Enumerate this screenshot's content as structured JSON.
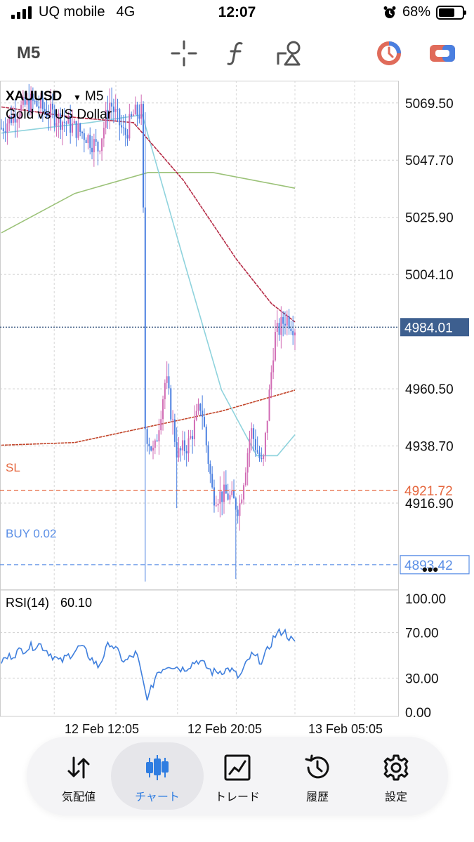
{
  "status_bar": {
    "carrier": "UQ mobile",
    "network": "4G",
    "time": "12:07",
    "battery": "68%",
    "battery_level": 0.68
  },
  "toolbar": {
    "timeframe": "M5",
    "icons": [
      "crosshair-icon",
      "function-icon",
      "objects-icon",
      "chart-type-icon",
      "trade-toggle-icon"
    ]
  },
  "chart": {
    "symbol": "XAUUSD",
    "timeframe": "M5",
    "description": "Gold vs US Dollar",
    "current_price": "4984.01",
    "price_ticks": [
      "5069.50",
      "5047.70",
      "5025.90",
      "5004.10",
      "4960.50",
      "4938.70",
      "4916.90"
    ],
    "sl_label": "SL",
    "sl_price": "4921.72",
    "buy_label": "BUY 0.02",
    "buy_price": "4893.42",
    "more_label": "•••",
    "time_ticks": [
      "12 Feb 12:05",
      "12 Feb 20:05",
      "13 Feb 05:05"
    ],
    "colors": {
      "bull": "#d16bb4",
      "bear": "#4a7fe0",
      "ma_fast": "#8fd3dd",
      "ma_mid": "#b52a45",
      "ma_slow": "#9bc278",
      "ma_long": "#c2452a",
      "sl_line": "#e5663d",
      "buy_line": "#5b8fe6",
      "rsi_line": "#3f7fdd"
    }
  },
  "rsi": {
    "label": "RSI(14)",
    "value": "60.10",
    "levels": [
      "100.00",
      "70.00",
      "30.00",
      "0.00"
    ]
  },
  "bottom_nav": [
    {
      "label": "気配値",
      "icon": "quotes-icon"
    },
    {
      "label": "チャート",
      "icon": "chart-icon",
      "active": true
    },
    {
      "label": "トレード",
      "icon": "trade-icon"
    },
    {
      "label": "履歴",
      "icon": "history-icon"
    },
    {
      "label": "設定",
      "icon": "settings-icon"
    }
  ],
  "chart_data": {
    "type": "candlestick",
    "symbol": "XAUUSD",
    "timeframe": "M5",
    "ylim": [
      4884,
      5078
    ],
    "x_tick_labels": [
      "12 Feb 12:05",
      "12 Feb 20:05",
      "13 Feb 05:05"
    ],
    "segments": [
      {
        "t": 0.0,
        "price": 5060
      },
      {
        "t": 0.05,
        "price": 5066
      },
      {
        "t": 0.1,
        "price": 5070
      },
      {
        "t": 0.16,
        "price": 5066
      },
      {
        "t": 0.22,
        "price": 5062
      },
      {
        "t": 0.29,
        "price": 5057
      },
      {
        "t": 0.33,
        "price": 5052
      },
      {
        "t": 0.37,
        "price": 5070
      },
      {
        "t": 0.42,
        "price": 5057
      },
      {
        "t": 0.45,
        "price": 5065
      },
      {
        "t": 0.48,
        "price": 5066
      },
      {
        "t": 0.49,
        "price": 4945
      },
      {
        "t": 0.52,
        "price": 4935
      },
      {
        "t": 0.56,
        "price": 4965
      },
      {
        "t": 0.6,
        "price": 4935
      },
      {
        "t": 0.64,
        "price": 4940
      },
      {
        "t": 0.68,
        "price": 4955
      },
      {
        "t": 0.72,
        "price": 4920
      },
      {
        "t": 0.77,
        "price": 4920
      },
      {
        "t": 0.81,
        "price": 4915
      },
      {
        "t": 0.85,
        "price": 4945
      },
      {
        "t": 0.89,
        "price": 4930
      },
      {
        "t": 0.93,
        "price": 4980
      },
      {
        "t": 0.97,
        "price": 4988
      },
      {
        "t": 1.0,
        "price": 4984
      }
    ],
    "rsi_segments": [
      {
        "t": 0.0,
        "v": 45
      },
      {
        "t": 0.07,
        "v": 55
      },
      {
        "t": 0.13,
        "v": 60
      },
      {
        "t": 0.2,
        "v": 44
      },
      {
        "t": 0.27,
        "v": 58
      },
      {
        "t": 0.33,
        "v": 40
      },
      {
        "t": 0.37,
        "v": 62
      },
      {
        "t": 0.42,
        "v": 44
      },
      {
        "t": 0.46,
        "v": 52
      },
      {
        "t": 0.49,
        "v": 18
      },
      {
        "t": 0.5,
        "v": 12
      },
      {
        "t": 0.53,
        "v": 35
      },
      {
        "t": 0.57,
        "v": 42
      },
      {
        "t": 0.62,
        "v": 38
      },
      {
        "t": 0.67,
        "v": 46
      },
      {
        "t": 0.72,
        "v": 35
      },
      {
        "t": 0.78,
        "v": 38
      },
      {
        "t": 0.81,
        "v": 30
      },
      {
        "t": 0.85,
        "v": 50
      },
      {
        "t": 0.89,
        "v": 45
      },
      {
        "t": 0.93,
        "v": 67
      },
      {
        "t": 0.96,
        "v": 72
      },
      {
        "t": 1.0,
        "v": 60
      }
    ],
    "ma_fast": [
      [
        0.0,
        5058
      ],
      [
        0.3,
        5062
      ],
      [
        0.48,
        5065
      ],
      [
        0.62,
        5010
      ],
      [
        0.75,
        4960
      ],
      [
        0.87,
        4935
      ],
      [
        0.94,
        4935
      ],
      [
        1.0,
        4943
      ]
    ],
    "ma_mid": [
      [
        0.0,
        5068
      ],
      [
        0.25,
        5064
      ],
      [
        0.45,
        5062
      ],
      [
        0.62,
        5040
      ],
      [
        0.8,
        5010
      ],
      [
        0.92,
        4993
      ],
      [
        1.0,
        4986
      ]
    ],
    "ma_slow": [
      [
        0.0,
        5020
      ],
      [
        0.25,
        5035
      ],
      [
        0.5,
        5043
      ],
      [
        0.72,
        5043
      ],
      [
        1.0,
        5037
      ]
    ],
    "ma_long": [
      [
        0.0,
        4939
      ],
      [
        0.25,
        4940
      ],
      [
        0.5,
        4946
      ],
      [
        0.75,
        4952
      ],
      [
        1.0,
        4960
      ]
    ],
    "rsi_levels": [
      70,
      30
    ]
  }
}
